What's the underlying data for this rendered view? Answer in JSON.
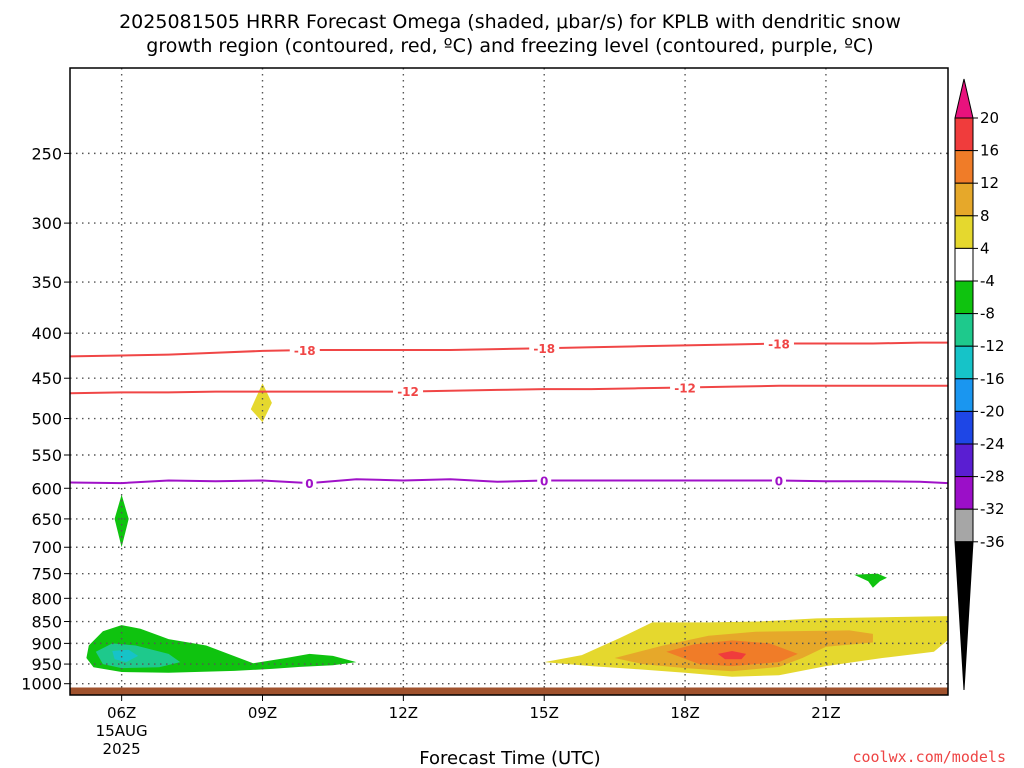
{
  "title": {
    "line1": "2025081505 HRRR Forecast Omega (shaded, μbar/s) for KPLB with dendritic snow",
    "line2": "growth region (contoured, red, ºC) and freezing level (contoured, purple, ºC)"
  },
  "credit": "coolwx.com/models",
  "chart_data": {
    "type": "time-height cross section",
    "xlabel": "Forecast Time (UTC)",
    "ylabel": "",
    "y_scale": "log-pressure, inverted",
    "ylim": [
      1030,
      200
    ],
    "y_ticks": [
      250,
      300,
      350,
      400,
      450,
      500,
      550,
      600,
      650,
      700,
      750,
      800,
      850,
      900,
      950,
      1000
    ],
    "xlim": [
      4.9,
      23.6
    ],
    "x_ticks": [
      {
        "hour": 6,
        "label": "06Z",
        "sub1": "15AUG",
        "sub2": "2025"
      },
      {
        "hour": 9,
        "label": "09Z"
      },
      {
        "hour": 12,
        "label": "12Z"
      },
      {
        "hour": 15,
        "label": "15Z"
      },
      {
        "hour": 18,
        "label": "18Z"
      },
      {
        "hour": 21,
        "label": "21Z"
      }
    ],
    "grid": "dotted",
    "ground_level_hpa": 1010,
    "ground_color": "#a0522d",
    "colorbar": {
      "labels": [
        "20",
        "16",
        "12",
        "8",
        "4",
        "-4",
        "-8",
        "-12",
        "-16",
        "-20",
        "-24",
        "-28",
        "-32",
        "-36"
      ],
      "colors": [
        "#e8127d",
        "#f03c3c",
        "#f07c28",
        "#e6a82a",
        "#e5d82e",
        "#ffffff",
        "#0fc30f",
        "#1ec98c",
        "#16c3c8",
        "#1a96f0",
        "#1e46e6",
        "#5a1ed2",
        "#9b0fc8",
        "#a6a6a6",
        "#000000"
      ]
    },
    "contours": [
      {
        "name": "-18",
        "color": "#f04646",
        "points": [
          [
            4.9,
            425
          ],
          [
            6,
            424
          ],
          [
            7,
            423
          ],
          [
            8,
            421
          ],
          [
            9,
            419
          ],
          [
            10,
            418
          ],
          [
            11,
            418
          ],
          [
            12,
            418
          ],
          [
            13,
            418
          ],
          [
            14,
            417
          ],
          [
            15,
            416
          ],
          [
            16,
            415
          ],
          [
            17,
            414
          ],
          [
            18,
            413
          ],
          [
            19,
            412
          ],
          [
            20,
            411
          ],
          [
            21,
            411
          ],
          [
            22,
            411
          ],
          [
            23,
            410
          ],
          [
            23.6,
            410
          ]
        ],
        "labels": [
          [
            9.9,
            418
          ],
          [
            15,
            416
          ],
          [
            20,
            411
          ]
        ]
      },
      {
        "name": "-12",
        "color": "#f04646",
        "points": [
          [
            4.9,
            468
          ],
          [
            6,
            467
          ],
          [
            7,
            467
          ],
          [
            8,
            466
          ],
          [
            9,
            466
          ],
          [
            10,
            466
          ],
          [
            11,
            466
          ],
          [
            12,
            466
          ],
          [
            13,
            465
          ],
          [
            14,
            464
          ],
          [
            15,
            463
          ],
          [
            16,
            463
          ],
          [
            17,
            462
          ],
          [
            18,
            461
          ],
          [
            19,
            460
          ],
          [
            20,
            459
          ],
          [
            21,
            459
          ],
          [
            22,
            459
          ],
          [
            23,
            459
          ],
          [
            23.6,
            459
          ]
        ],
        "labels": [
          [
            12.1,
            465
          ],
          [
            18,
            461
          ]
        ]
      },
      {
        "name": "0",
        "color": "#a012c8",
        "points": [
          [
            4.9,
            591
          ],
          [
            6,
            592
          ],
          [
            7,
            588
          ],
          [
            8,
            589
          ],
          [
            9,
            588
          ],
          [
            10,
            592
          ],
          [
            11,
            586
          ],
          [
            12,
            588
          ],
          [
            13,
            586
          ],
          [
            14,
            590
          ],
          [
            15,
            588
          ],
          [
            16,
            588
          ],
          [
            17,
            588
          ],
          [
            18,
            588
          ],
          [
            19,
            588
          ],
          [
            20,
            588
          ],
          [
            21,
            589
          ],
          [
            22,
            589
          ],
          [
            23,
            590
          ],
          [
            23.6,
            592
          ]
        ],
        "labels": [
          [
            10,
            592
          ],
          [
            15,
            588
          ],
          [
            20,
            588
          ]
        ]
      }
    ],
    "shaded_regions": [
      {
        "value": 4,
        "color": "#e5d82e",
        "points": [
          [
            9,
            456
          ],
          [
            9.2,
            480
          ],
          [
            9,
            505
          ],
          [
            8.75,
            488
          ]
        ]
      },
      {
        "value": -4,
        "color": "#0fc30f",
        "points": [
          [
            6,
            610
          ],
          [
            6.15,
            650
          ],
          [
            6,
            700
          ],
          [
            5.85,
            650
          ]
        ]
      },
      {
        "value": -4,
        "color": "#0fc30f",
        "points": [
          [
            21.6,
            752
          ],
          [
            22.1,
            750
          ],
          [
            22.3,
            758
          ],
          [
            22.15,
            765
          ],
          [
            22,
            778
          ],
          [
            21.9,
            765
          ]
        ]
      },
      {
        "value": -4,
        "color": "#0fc30f",
        "points": [
          [
            5.3,
            905
          ],
          [
            5.6,
            872
          ],
          [
            6,
            858
          ],
          [
            6.4,
            866
          ],
          [
            7,
            890
          ],
          [
            7.8,
            905
          ],
          [
            8.8,
            948
          ],
          [
            9.5,
            935
          ],
          [
            10,
            925
          ],
          [
            10.5,
            930
          ],
          [
            11,
            945
          ],
          [
            10.5,
            953
          ],
          [
            9.8,
            957
          ],
          [
            9.2,
            962
          ],
          [
            8.4,
            967
          ],
          [
            7,
            972
          ],
          [
            6,
            970
          ],
          [
            5.4,
            958
          ],
          [
            5.25,
            935
          ]
        ]
      },
      {
        "value": -8,
        "color": "#1ec98c",
        "points": [
          [
            5.45,
            920
          ],
          [
            5.8,
            900
          ],
          [
            6.3,
            905
          ],
          [
            7,
            925
          ],
          [
            7.25,
            945
          ],
          [
            6.8,
            958
          ],
          [
            6,
            960
          ],
          [
            5.6,
            950
          ]
        ]
      },
      {
        "value": -12,
        "color": "#16c3c8",
        "points": [
          [
            5.8,
            918
          ],
          [
            6.15,
            915
          ],
          [
            6.35,
            930
          ],
          [
            6.1,
            945
          ],
          [
            5.85,
            938
          ]
        ]
      },
      {
        "value": 4,
        "color": "#e5d82e",
        "points": [
          [
            15,
            945
          ],
          [
            15.8,
            928
          ],
          [
            16.6,
            888
          ],
          [
            17.3,
            852
          ],
          [
            18.5,
            852
          ],
          [
            19.6,
            850
          ],
          [
            20.8,
            843
          ],
          [
            22.5,
            840
          ],
          [
            23.6,
            838
          ],
          [
            23.6,
            892
          ],
          [
            23.3,
            920
          ],
          [
            22.2,
            935
          ],
          [
            21,
            955
          ],
          [
            20,
            978
          ],
          [
            19,
            982
          ],
          [
            18,
            972
          ],
          [
            17,
            963
          ],
          [
            16,
            955
          ]
        ]
      },
      {
        "value": 8,
        "color": "#e6a82a",
        "points": [
          [
            16.5,
            935
          ],
          [
            17.5,
            906
          ],
          [
            18.5,
            882
          ],
          [
            19.5,
            873
          ],
          [
            21.5,
            870
          ],
          [
            22,
            878
          ],
          [
            22,
            898
          ],
          [
            21,
            908
          ],
          [
            20.5,
            935
          ],
          [
            20,
            957
          ],
          [
            19,
            968
          ],
          [
            18,
            960
          ],
          [
            17.1,
            950
          ]
        ]
      },
      {
        "value": 12,
        "color": "#f07c28",
        "points": [
          [
            17.6,
            920
          ],
          [
            18.2,
            902
          ],
          [
            19,
            893
          ],
          [
            19.8,
            900
          ],
          [
            20.4,
            925
          ],
          [
            20,
            945
          ],
          [
            19,
            955
          ],
          [
            18.3,
            950
          ]
        ]
      },
      {
        "value": 16,
        "color": "#f03c3c",
        "points": [
          [
            18.7,
            925
          ],
          [
            19,
            918
          ],
          [
            19.3,
            925
          ],
          [
            19.2,
            938
          ],
          [
            18.85,
            938
          ]
        ]
      }
    ]
  }
}
